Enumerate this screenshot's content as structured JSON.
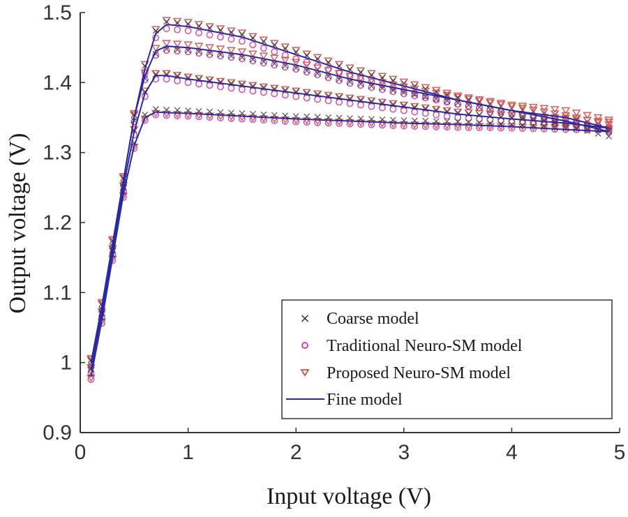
{
  "chart_data": {
    "type": "line",
    "title": "",
    "xlabel": "Input voltage (V)",
    "ylabel": "Output voltage (V)",
    "xlim": [
      0,
      5
    ],
    "ylim": [
      0.9,
      1.5
    ],
    "xticks": [
      0,
      1,
      2,
      3,
      4,
      5
    ],
    "xtick_labels": [
      "0",
      "1",
      "2",
      "3",
      "4",
      "5"
    ],
    "yticks": [
      0.9,
      1.0,
      1.1,
      1.2,
      1.3,
      1.4,
      1.5
    ],
    "ytick_labels": [
      "0.9",
      "1",
      "1.1",
      "1.2",
      "1.3",
      "1.4",
      "1.5"
    ],
    "grid": false,
    "legend_position": "bottom-right",
    "legend": [
      {
        "label": "Coarse model",
        "marker": "x",
        "color": "#333333"
      },
      {
        "label": "Traditional Neuro-SM model",
        "marker": "circle",
        "color": "#cc44aa"
      },
      {
        "label": "Proposed Neuro-SM model",
        "marker": "triangle-down",
        "color": "#d0504a"
      },
      {
        "label": "Fine model",
        "marker": "line",
        "color": "#2a2aa0"
      }
    ],
    "x": [
      0.1,
      0.2,
      0.3,
      0.4,
      0.5,
      0.6,
      0.7,
      0.8,
      1.0,
      1.5,
      2.0,
      2.5,
      3.0,
      3.5,
      4.0,
      4.5,
      4.9
    ],
    "series": [
      {
        "name": "Fine model (curve 1)",
        "values": [
          1.0,
          1.08,
          1.17,
          1.26,
          1.35,
          1.42,
          1.47,
          1.483,
          1.48,
          1.465,
          1.44,
          1.415,
          1.395,
          1.375,
          1.36,
          1.35,
          1.335
        ]
      },
      {
        "name": "Fine model (curve 2)",
        "values": [
          1.0,
          1.08,
          1.17,
          1.26,
          1.35,
          1.41,
          1.445,
          1.452,
          1.45,
          1.44,
          1.425,
          1.405,
          1.39,
          1.375,
          1.36,
          1.345,
          1.33
        ]
      },
      {
        "name": "Fine model (curve 3)",
        "values": [
          0.99,
          1.07,
          1.16,
          1.25,
          1.33,
          1.385,
          1.41,
          1.41,
          1.405,
          1.395,
          1.385,
          1.375,
          1.365,
          1.355,
          1.348,
          1.342,
          1.335
        ]
      },
      {
        "name": "Fine model (curve 4)",
        "values": [
          0.98,
          1.06,
          1.15,
          1.24,
          1.31,
          1.35,
          1.358,
          1.357,
          1.356,
          1.352,
          1.348,
          1.345,
          1.342,
          1.34,
          1.337,
          1.333,
          1.33
        ]
      }
    ],
    "marker_x": [
      0.1,
      0.2,
      0.3,
      0.4,
      0.5,
      0.6,
      0.7,
      0.8,
      0.9,
      1.0,
      1.1,
      1.2,
      1.3,
      1.4,
      1.5,
      1.6,
      1.7,
      1.8,
      1.9,
      2.0,
      2.1,
      2.2,
      2.3,
      2.4,
      2.5,
      2.6,
      2.7,
      2.8,
      2.9,
      3.0,
      3.1,
      3.2,
      3.3,
      3.4,
      3.5,
      3.6,
      3.7,
      3.8,
      3.9,
      4.0,
      4.1,
      4.2,
      4.3,
      4.4,
      4.5,
      4.6,
      4.7,
      4.8,
      4.9
    ]
  },
  "colors": {
    "fine": "#2a2aa0",
    "coarse": "#333333",
    "traditional": "#cc44aa",
    "proposed": "#d0504a",
    "axis": "#333333"
  }
}
